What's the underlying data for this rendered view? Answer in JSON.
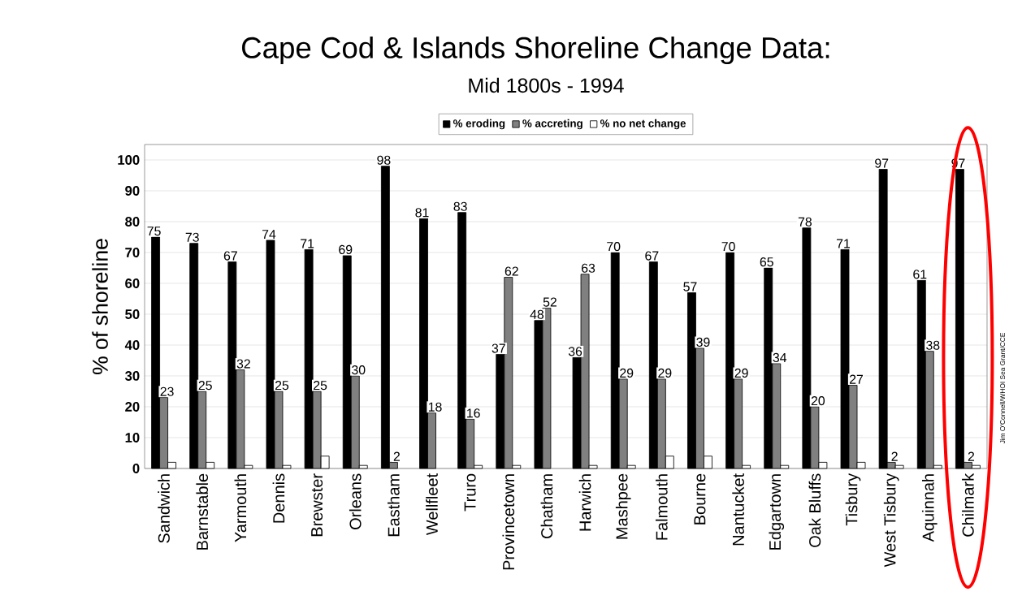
{
  "chart_data": {
    "type": "bar",
    "title": "Cape Cod & Islands Shoreline Change Data:",
    "subtitle": "Mid 1800s - 1994",
    "ylabel": "% of shoreline",
    "categories": [
      "Sandwich",
      "Barnstable",
      "Yarmouth",
      "Dennis",
      "Brewster",
      "Orleans",
      "Eastham",
      "Wellfleet",
      "Truro",
      "Provincetown",
      "Chatham",
      "Harwich",
      "Mashpee",
      "Falmouth",
      "Bourne",
      "Nantucket",
      "Edgartown",
      "Oak Bluffs",
      "Tisbury",
      "West Tisbury",
      "Aquinnah",
      "Chilmark"
    ],
    "series": [
      {
        "name": "% eroding",
        "color": "#000000",
        "values": [
          75,
          73,
          67,
          74,
          71,
          69,
          98,
          81,
          83,
          37,
          48,
          36,
          70,
          67,
          57,
          70,
          65,
          78,
          71,
          97,
          61,
          97
        ],
        "value_labels": [
          "75",
          "73",
          "67",
          "74",
          "71",
          "69",
          "98",
          "81",
          "83",
          "37",
          "48",
          "36",
          "70",
          "67",
          "57",
          "70",
          "65",
          "78",
          "71",
          "97",
          "61",
          "97"
        ]
      },
      {
        "name": "% accreting",
        "color": "#808080",
        "values": [
          23,
          25,
          32,
          25,
          25,
          30,
          2,
          18,
          16,
          62,
          52,
          63,
          29,
          29,
          39,
          29,
          34,
          20,
          27,
          2,
          38,
          2
        ],
        "value_labels": [
          "23",
          "25",
          "32",
          "25",
          "25",
          "30",
          "2",
          "18",
          "16",
          "62",
          "52",
          "63",
          "29",
          "29",
          "39",
          "29",
          "34",
          "20",
          "27",
          "2",
          "38",
          "2"
        ]
      },
      {
        "name": "% no net change",
        "color": "#ffffff",
        "values": [
          2,
          2,
          1,
          1,
          4,
          1,
          0,
          0,
          1,
          1,
          0,
          1,
          1,
          4,
          4,
          1,
          1,
          2,
          2,
          1,
          1,
          1
        ]
      }
    ],
    "ylim": [
      0,
      105
    ],
    "yticks": [
      0,
      10,
      20,
      30,
      40,
      50,
      60,
      70,
      80,
      90,
      100
    ],
    "grid": "y",
    "legend": "top",
    "annotations": [
      "Jim O'Connell/WHOI Sea Grant/CCE"
    ]
  }
}
